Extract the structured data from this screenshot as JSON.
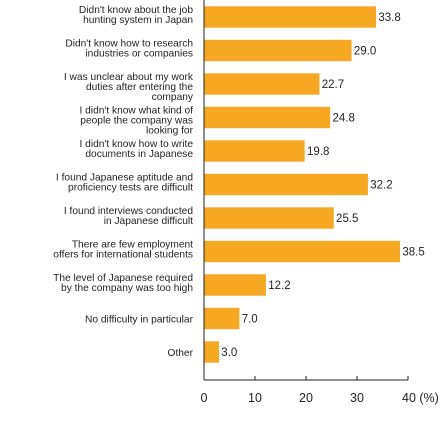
{
  "chart_data": {
    "type": "bar",
    "orientation": "horizontal",
    "categories": [
      [
        "Didn't know about the job",
        "hunting system in Japan"
      ],
      [
        "Didn't know how to research",
        "industries or companies"
      ],
      [
        "I was unclear about my work",
        "duties after entering the",
        "company"
      ],
      [
        "I didn't know what kind of",
        "people the company was",
        "looking for"
      ],
      [
        "I didn't know how to write",
        "documents in Japanese"
      ],
      [
        "I found Japanese aptitude and",
        "proficiency tests are difficult"
      ],
      [
        "I found interviews conducted",
        "in Japanese difficult"
      ],
      [
        "There are few employment",
        "offers for international students"
      ],
      [
        "The level of Japanese required",
        "by the company was too high"
      ],
      [
        "No difficulty in particular"
      ],
      [
        "Other"
      ]
    ],
    "values": [
      33.8,
      29.0,
      22.7,
      24.8,
      19.8,
      32.2,
      25.5,
      38.5,
      12.2,
      7.0,
      3.0
    ],
    "value_labels": [
      "33.8",
      "29.0",
      "22.7",
      "24.8",
      "19.8",
      "32.2",
      "25.5",
      "38.5",
      "12.2",
      "7.0",
      "3.0"
    ],
    "x_ticks": [
      0,
      10,
      20,
      30,
      40
    ],
    "x_tick_labels": [
      "0",
      "10",
      "20",
      "30",
      "40 (%)"
    ],
    "xlim": [
      0,
      40
    ],
    "bar_color": "#f7a823",
    "bar_outline_color": "#ffffff",
    "axis_color": "#231f20",
    "grid": false,
    "legend": false
  }
}
